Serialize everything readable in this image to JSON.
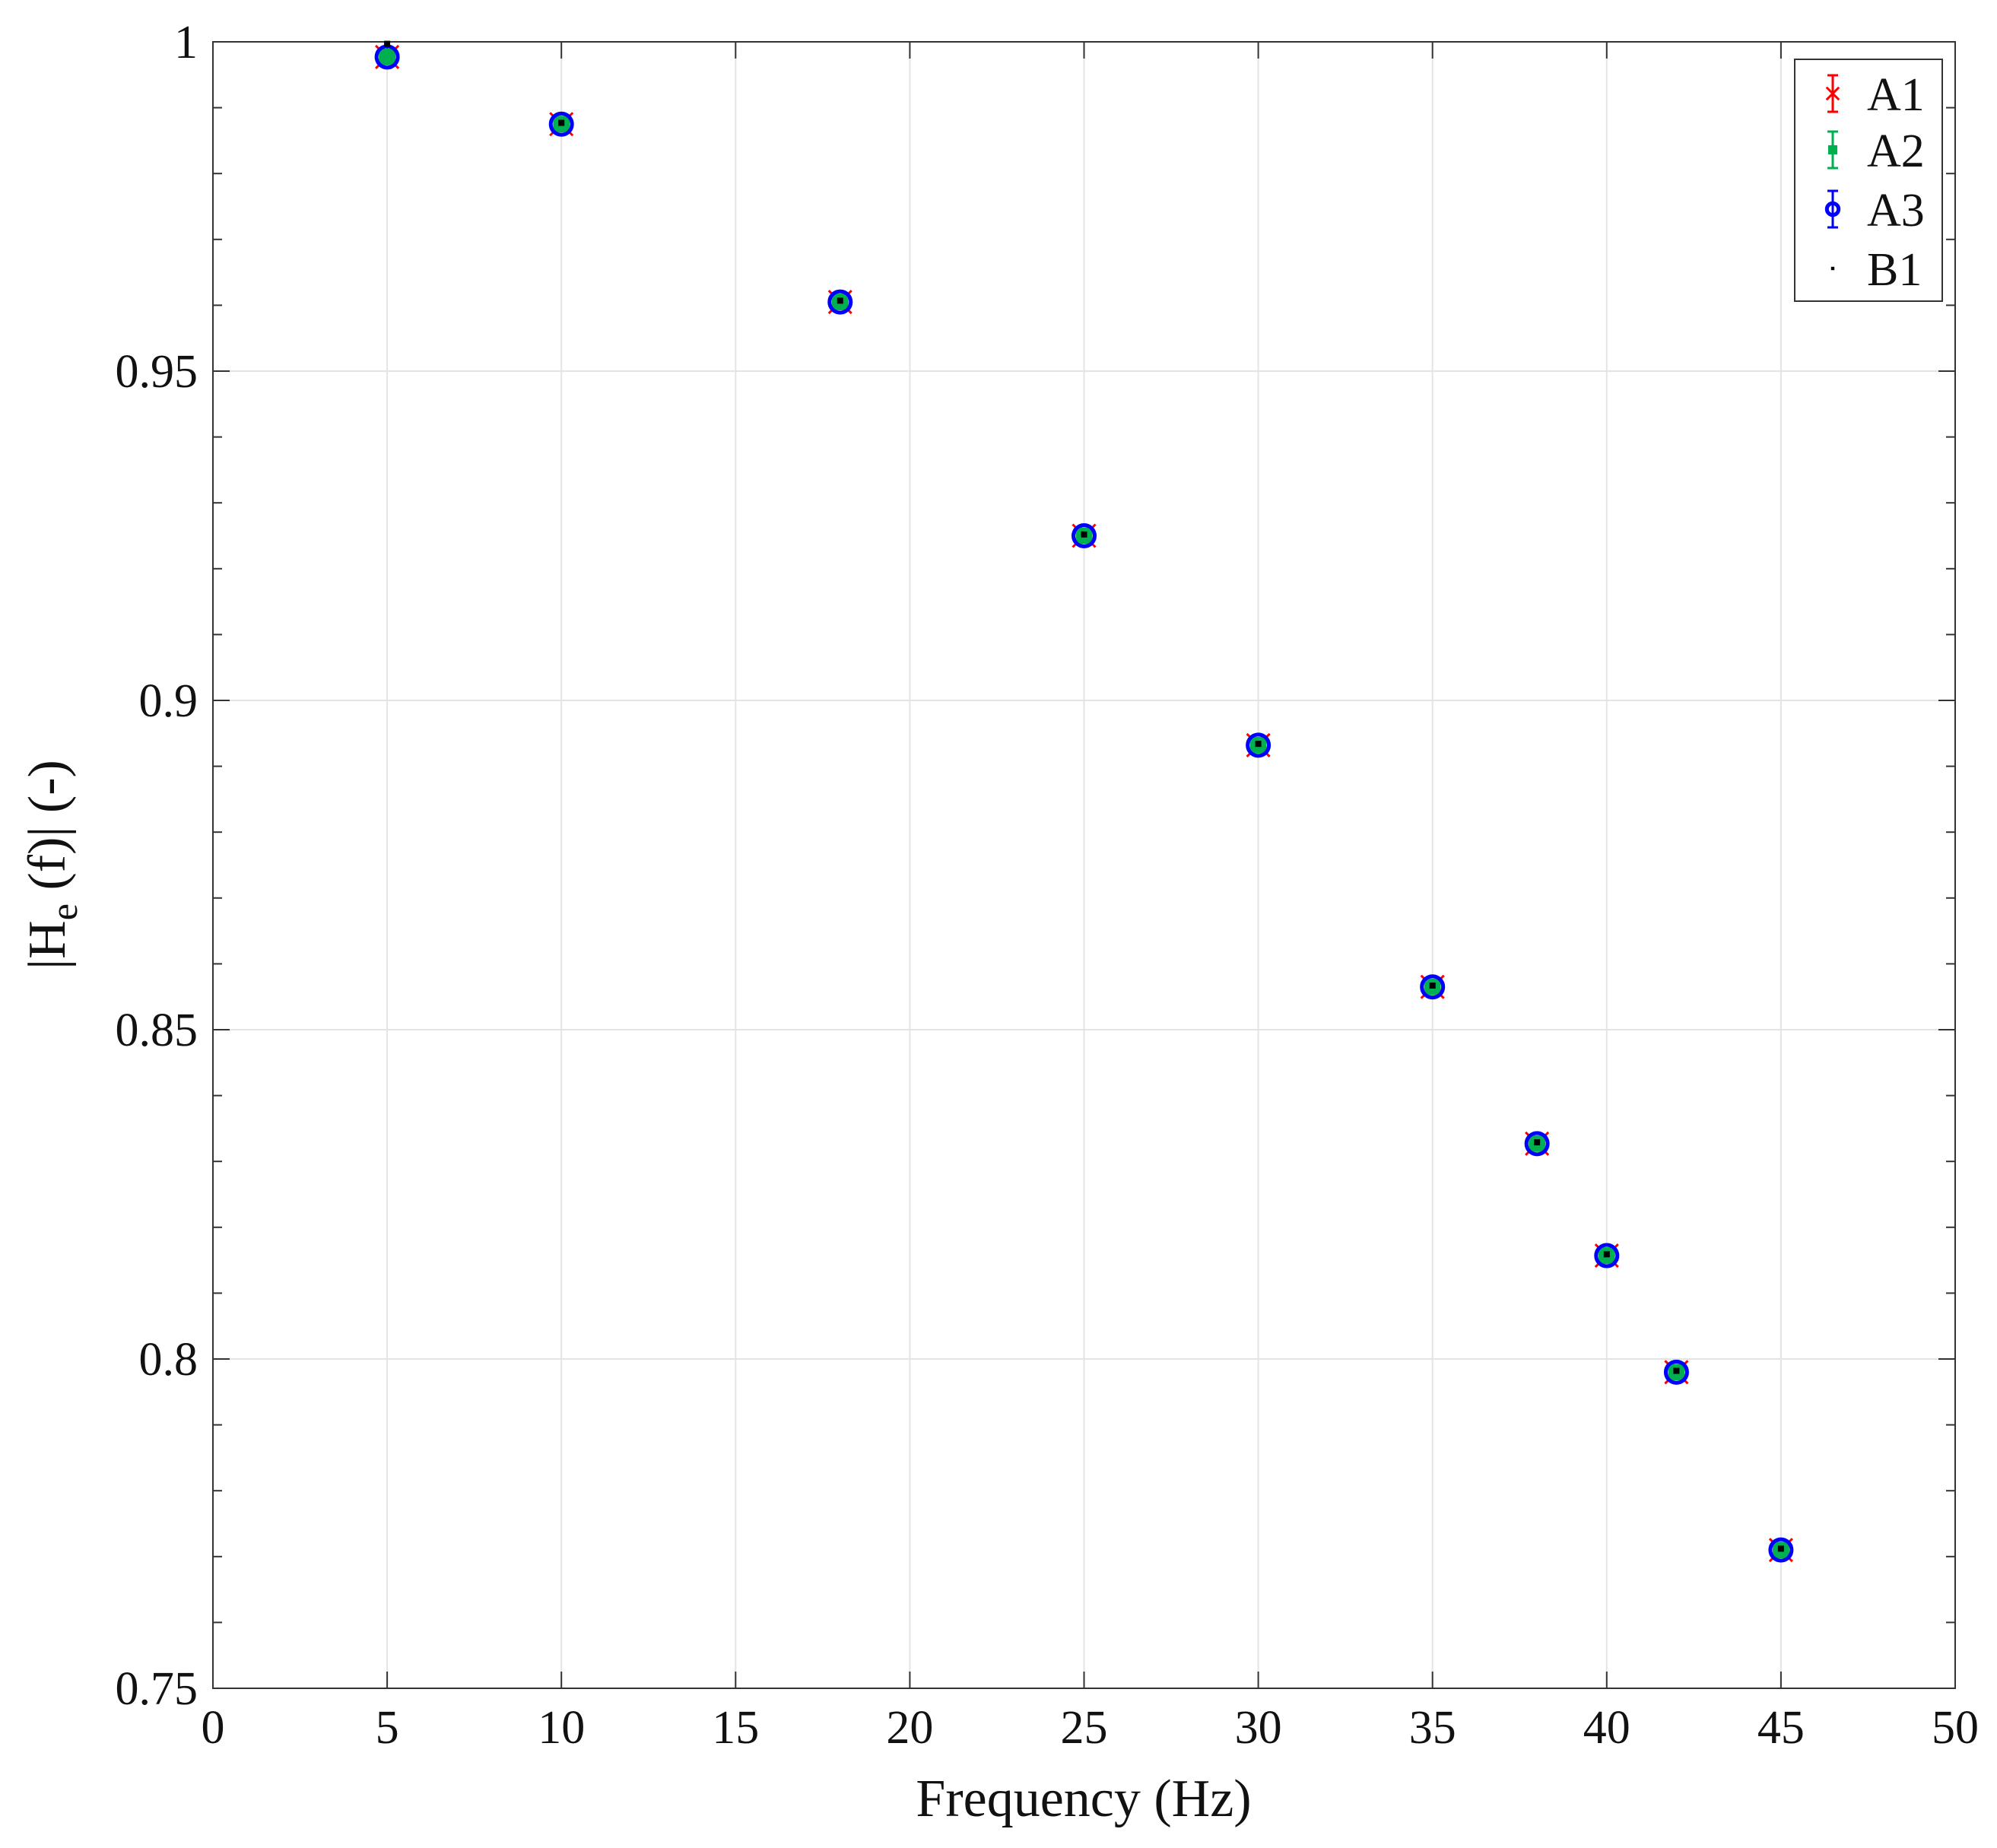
{
  "chart_data": {
    "type": "scatter",
    "title": "",
    "xlabel": "Frequency (Hz)",
    "ylabel": {
      "prefix": "|H",
      "subscript": "e",
      "suffix": " (f)|  (-)"
    },
    "xlim": [
      0,
      50
    ],
    "ylim": [
      0.75,
      1
    ],
    "x_ticks": [
      "0",
      "5",
      "10",
      "15",
      "20",
      "25",
      "30",
      "35",
      "40",
      "45",
      "50"
    ],
    "y_ticks": [
      "0.75",
      "0.8",
      "0.85",
      "0.9",
      "0.95",
      "1"
    ],
    "grid": true,
    "legend_position": "top-right",
    "x": [
      5,
      10,
      18,
      25,
      30,
      35,
      38,
      40,
      42,
      45
    ],
    "series": [
      {
        "name": "A1",
        "color": "#ff0000",
        "marker": "x-errorbar",
        "values": [
          0.9977,
          0.9875,
          0.9605,
          0.925,
          0.8932,
          0.8565,
          0.8327,
          0.8157,
          0.798,
          0.771
        ]
      },
      {
        "name": "A2",
        "color": "#00b050",
        "marker": "filled-square-errorbar",
        "values": [
          0.9977,
          0.9875,
          0.9605,
          0.925,
          0.8932,
          0.8565,
          0.8327,
          0.8157,
          0.798,
          0.771
        ]
      },
      {
        "name": "A3",
        "color": "#0000ff",
        "marker": "circle-errorbar",
        "values": [
          0.9977,
          0.9875,
          0.9605,
          0.925,
          0.8932,
          0.8565,
          0.8327,
          0.8157,
          0.798,
          0.771
        ]
      },
      {
        "name": "B1",
        "color": "#000000",
        "marker": "small-square",
        "values": [
          0.9997,
          0.9877,
          0.9607,
          0.9252,
          0.8934,
          0.8567,
          0.8329,
          0.8159,
          0.7982,
          0.7712
        ]
      }
    ]
  }
}
